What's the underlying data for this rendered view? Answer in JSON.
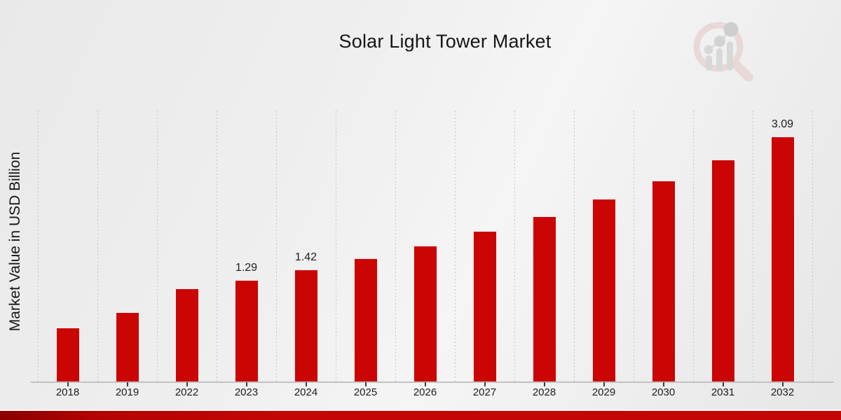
{
  "chart_data": {
    "type": "bar",
    "title": "Solar Light Tower Market",
    "xlabel": "",
    "ylabel": "Market Value in USD Billion",
    "categories": [
      "2018",
      "2019",
      "2022",
      "2023",
      "2024",
      "2025",
      "2026",
      "2027",
      "2028",
      "2029",
      "2030",
      "2031",
      "2032"
    ],
    "values": [
      0.69,
      0.88,
      1.18,
      1.29,
      1.42,
      1.56,
      1.72,
      1.9,
      2.09,
      2.31,
      2.54,
      2.8,
      3.09
    ],
    "bar_labels": [
      "",
      "",
      "",
      "1.29",
      "1.42",
      "",
      "",
      "",
      "",
      "",
      "",
      "",
      "3.09"
    ],
    "unit": "USD Billion",
    "ylim": [
      0,
      3.41
    ],
    "grid": "vertical-dashed",
    "legend_position": "none",
    "bar_color": "#cb0404",
    "bar_edge_color": "#efecec"
  },
  "colors": {
    "background": "#eeeeee",
    "footer_bar": "#c40606",
    "gridline": "#c6c6c6",
    "text": "#1a1a1a"
  },
  "branding": {
    "logo_icon": "magnifier-bar-chart-watermark"
  }
}
